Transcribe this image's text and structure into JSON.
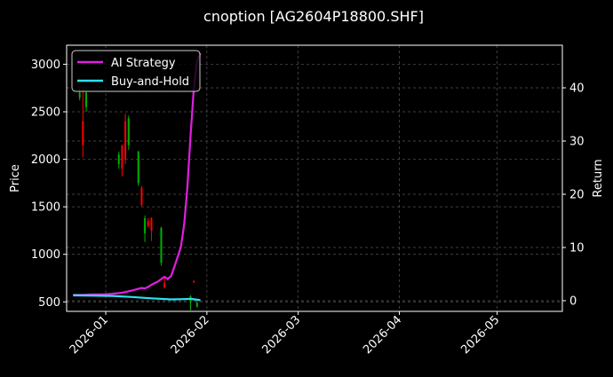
{
  "chart_data": {
    "type": "line",
    "title": "cnoption [AG2604P18800.SHF]",
    "xlabel": "",
    "ylabel_left": "Price",
    "ylabel_right": "Return",
    "x_ticks": [
      "2026-01",
      "2026-02",
      "2026-03",
      "2026-04",
      "2026-05"
    ],
    "x_range": [
      "2025-12-20",
      "2026-05-21"
    ],
    "ylim_left": [
      400,
      3200
    ],
    "ylim_right": [
      -2,
      48
    ],
    "y_ticks_left": [
      500,
      1000,
      1500,
      2000,
      2500,
      3000
    ],
    "y_ticks_right": [
      0,
      10,
      20,
      30,
      40
    ],
    "grid": true,
    "legend": {
      "position": "top-left",
      "entries": [
        "AI Strategy",
        "Buy-and-Hold"
      ]
    },
    "colors": {
      "ai_strategy": "#e01ee0",
      "buy_and_hold": "#2de0ef",
      "up_candle": "#00b000",
      "down_candle": "#ff0000",
      "grid": "#555555",
      "background": "#000000"
    },
    "series": [
      {
        "name": "AI Strategy",
        "axis": "right",
        "x": [
          "2025-12-22",
          "2025-12-25",
          "2025-12-28",
          "2025-12-31",
          "2026-01-03",
          "2026-01-06",
          "2026-01-09",
          "2026-01-12",
          "2026-01-13",
          "2026-01-14",
          "2026-01-15",
          "2026-01-17",
          "2026-01-19",
          "2026-01-20",
          "2026-01-21",
          "2026-01-22",
          "2026-01-24",
          "2026-01-25",
          "2026-01-26",
          "2026-01-27",
          "2026-01-28",
          "2026-01-29",
          "2026-01-30"
        ],
        "values": [
          1.1,
          1.1,
          1.2,
          1.2,
          1.3,
          1.5,
          1.9,
          2.4,
          2.3,
          2.6,
          3.0,
          3.6,
          4.5,
          4.1,
          4.6,
          6.3,
          10.0,
          14.2,
          21.0,
          31.0,
          40.0,
          45.0,
          46.5
        ]
      },
      {
        "name": "Buy-and-Hold",
        "axis": "right",
        "x": [
          "2025-12-22",
          "2025-12-28",
          "2026-01-03",
          "2026-01-09",
          "2026-01-15",
          "2026-01-21",
          "2026-01-25",
          "2026-01-27",
          "2026-01-30"
        ],
        "values": [
          1.0,
          0.95,
          0.9,
          0.7,
          0.45,
          0.25,
          0.3,
          0.35,
          0.1
        ]
      }
    ],
    "candles": [
      {
        "date": "2025-12-24",
        "open": 2650,
        "high": 2760,
        "low": 2620,
        "close": 2700
      },
      {
        "date": "2025-12-25",
        "open": 2400,
        "high": 2780,
        "low": 2020,
        "close": 2150
      },
      {
        "date": "2025-12-26",
        "open": 2550,
        "high": 2760,
        "low": 2500,
        "close": 2700
      },
      {
        "date": "2026-01-05",
        "open": 1950,
        "high": 2080,
        "low": 1900,
        "close": 2050
      },
      {
        "date": "2026-01-06",
        "open": 2150,
        "high": 2150,
        "low": 1820,
        "close": 1900
      },
      {
        "date": "2026-01-07",
        "open": 2400,
        "high": 2480,
        "low": 1950,
        "close": 2000
      },
      {
        "date": "2026-01-08",
        "open": 2150,
        "high": 2460,
        "low": 2100,
        "close": 2430
      },
      {
        "date": "2026-01-11",
        "open": 1750,
        "high": 2090,
        "low": 1720,
        "close": 2080
      },
      {
        "date": "2026-01-12",
        "open": 1700,
        "high": 1720,
        "low": 1500,
        "close": 1520
      },
      {
        "date": "2026-01-13",
        "open": 1220,
        "high": 1410,
        "low": 1130,
        "close": 1380
      },
      {
        "date": "2026-01-14",
        "open": 1350,
        "high": 1380,
        "low": 1280,
        "close": 1300
      },
      {
        "date": "2026-01-15",
        "open": 1380,
        "high": 1390,
        "low": 1140,
        "close": 1250
      },
      {
        "date": "2026-01-18",
        "open": 910,
        "high": 1290,
        "low": 880,
        "close": 1280
      },
      {
        "date": "2026-01-19",
        "open": 700,
        "high": 760,
        "low": 640,
        "close": 650
      },
      {
        "date": "2026-01-20",
        "open": 740,
        "high": 745,
        "low": 725,
        "close": 730
      },
      {
        "date": "2026-01-27",
        "open": 520,
        "high": 570,
        "low": 410,
        "close": 560
      },
      {
        "date": "2026-01-28",
        "open": 720,
        "high": 725,
        "low": 700,
        "close": 705
      },
      {
        "date": "2026-01-29",
        "open": 450,
        "high": 500,
        "low": 440,
        "close": 490
      }
    ]
  }
}
